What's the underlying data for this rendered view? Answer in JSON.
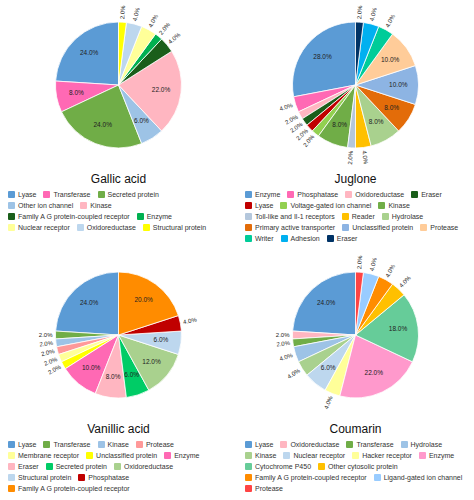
{
  "chart_data": [
    {
      "type": "pie",
      "title": "Gallic acid",
      "categories": [
        "Lyase",
        "Transferase",
        "Secreted protein",
        "Other ion channel",
        "Kinase",
        "Family A G protein-coupled receptor",
        "Enzyme",
        "Nuclear receptor",
        "Oxidoreductase",
        "Structural protein"
      ],
      "values": [
        24.0,
        8.0,
        24.0,
        6.0,
        22.0,
        4.0,
        2.0,
        4.0,
        4.0,
        2.0
      ],
      "value_labels": [
        "24.0%",
        "8.0%",
        "24.0%",
        "6.0%",
        "22.0%",
        "4.0%",
        "2.0%",
        "4.0%",
        "4.0%",
        "2.0%"
      ],
      "colors": [
        "#5b9bd5",
        "#ff69b4",
        "#70ad47",
        "#9dc3e6",
        "#ffb6c1",
        "#1a5e1a",
        "#00b050",
        "#ffff99",
        "#bdd7ee",
        "#ffff00"
      ],
      "data_labels": true,
      "legend": "bottom"
    },
    {
      "type": "pie",
      "title": "Juglone",
      "categories": [
        "Enzyme",
        "Phosphatase",
        "Oxidoreductase",
        "Eraser",
        "Lyase",
        "Voltage-gated ion channel",
        "Kinase",
        "Toll-like and Il-1 receptors",
        "Reader",
        "Hydrolase",
        "Primary active transporter",
        "Unclassified protein",
        "Protease",
        "Writer",
        "Adhesion",
        "Eraser"
      ],
      "values": [
        28.0,
        4.0,
        2.0,
        2.0,
        2.0,
        2.0,
        8.0,
        2.0,
        4.0,
        8.0,
        8.0,
        10.0,
        10.0,
        4.0,
        4.0,
        2.0
      ],
      "value_labels": [
        "28.0%",
        "4.0%",
        "2.0%",
        "2.0%",
        "2.0%",
        "2.0%",
        "8.0%",
        "2.0%",
        "4.0%",
        "8.0%",
        "8.0%",
        "10.0%",
        "10.0%",
        "4.0%",
        "4.0%",
        "2.0%"
      ],
      "colors": [
        "#5b9bd5",
        "#ff69b4",
        "#ffb6c1",
        "#1a5e1a",
        "#c00000",
        "#92d050",
        "#70ad47",
        "#b4c7dc",
        "#ffc000",
        "#a9d18e",
        "#e36c09",
        "#8db4e3",
        "#ffcc99",
        "#00cc99",
        "#00b0f0",
        "#003366"
      ],
      "data_labels": true,
      "legend": "bottom"
    },
    {
      "type": "pie",
      "title": "Vanillic acid",
      "categories": [
        "Lyase",
        "Transferase",
        "Kinase",
        "Protease",
        "Membrane receptor",
        "Unclassified protein",
        "Enzyme",
        "Eraser",
        "Secreted protein",
        "Oxidoreductase",
        "Structural protein",
        "Phosphatase",
        "Family A G protein-coupled receptor"
      ],
      "values": [
        24.0,
        2.0,
        2.0,
        2.0,
        2.0,
        2.0,
        10.0,
        8.0,
        6.0,
        12.0,
        6.0,
        4.0,
        20.0
      ],
      "value_labels": [
        "24.0%",
        "2.0%",
        "2.0%",
        "2.0%",
        "2.0%",
        "2.0%",
        "10.0%",
        "8.0%",
        "6.0%",
        "12.0%",
        "6.0%",
        "4.0%",
        "20.0%"
      ],
      "colors": [
        "#5b9bd5",
        "#70ad47",
        "#9dc3e6",
        "#ff9999",
        "#ffff99",
        "#ffff00",
        "#ff69b4",
        "#ffb6c1",
        "#00cc66",
        "#a9d18e",
        "#bdd7ee",
        "#c00000",
        "#ff8c00"
      ],
      "data_labels": true,
      "legend": "bottom"
    },
    {
      "type": "pie",
      "title": "Coumarin",
      "categories": [
        "Lyase",
        "Oxidoreductase",
        "Transferase",
        "Hydrolase",
        "Kinase",
        "Nuclear receptor",
        "Hacker receptor",
        "Enzyme",
        "Cytochrome P450",
        "Other cytosolic protein",
        "Family A G protein-coupled receptor",
        "Ligand-gated ion channel",
        "Protease"
      ],
      "values": [
        24.0,
        2.0,
        2.0,
        4.0,
        4.0,
        6.0,
        4.0,
        22.0,
        18.0,
        4.0,
        4.0,
        4.0,
        2.0
      ],
      "value_labels": [
        "24.0%",
        "2.0%",
        "2.0%",
        "4.0%",
        "4.0%",
        "6.0%",
        "4.0%",
        "22.0%",
        "18.0%",
        "4.0%",
        "4.0%",
        "4.0%",
        "2.0%"
      ],
      "colors": [
        "#5b9bd5",
        "#ffb6c1",
        "#70ad47",
        "#9dc3e6",
        "#a9d18e",
        "#bdd7ee",
        "#ffff99",
        "#ff99cc",
        "#66cc99",
        "#ffc000",
        "#ff8c00",
        "#99ccff",
        "#ff4444"
      ],
      "data_labels": true,
      "legend": "bottom"
    }
  ]
}
